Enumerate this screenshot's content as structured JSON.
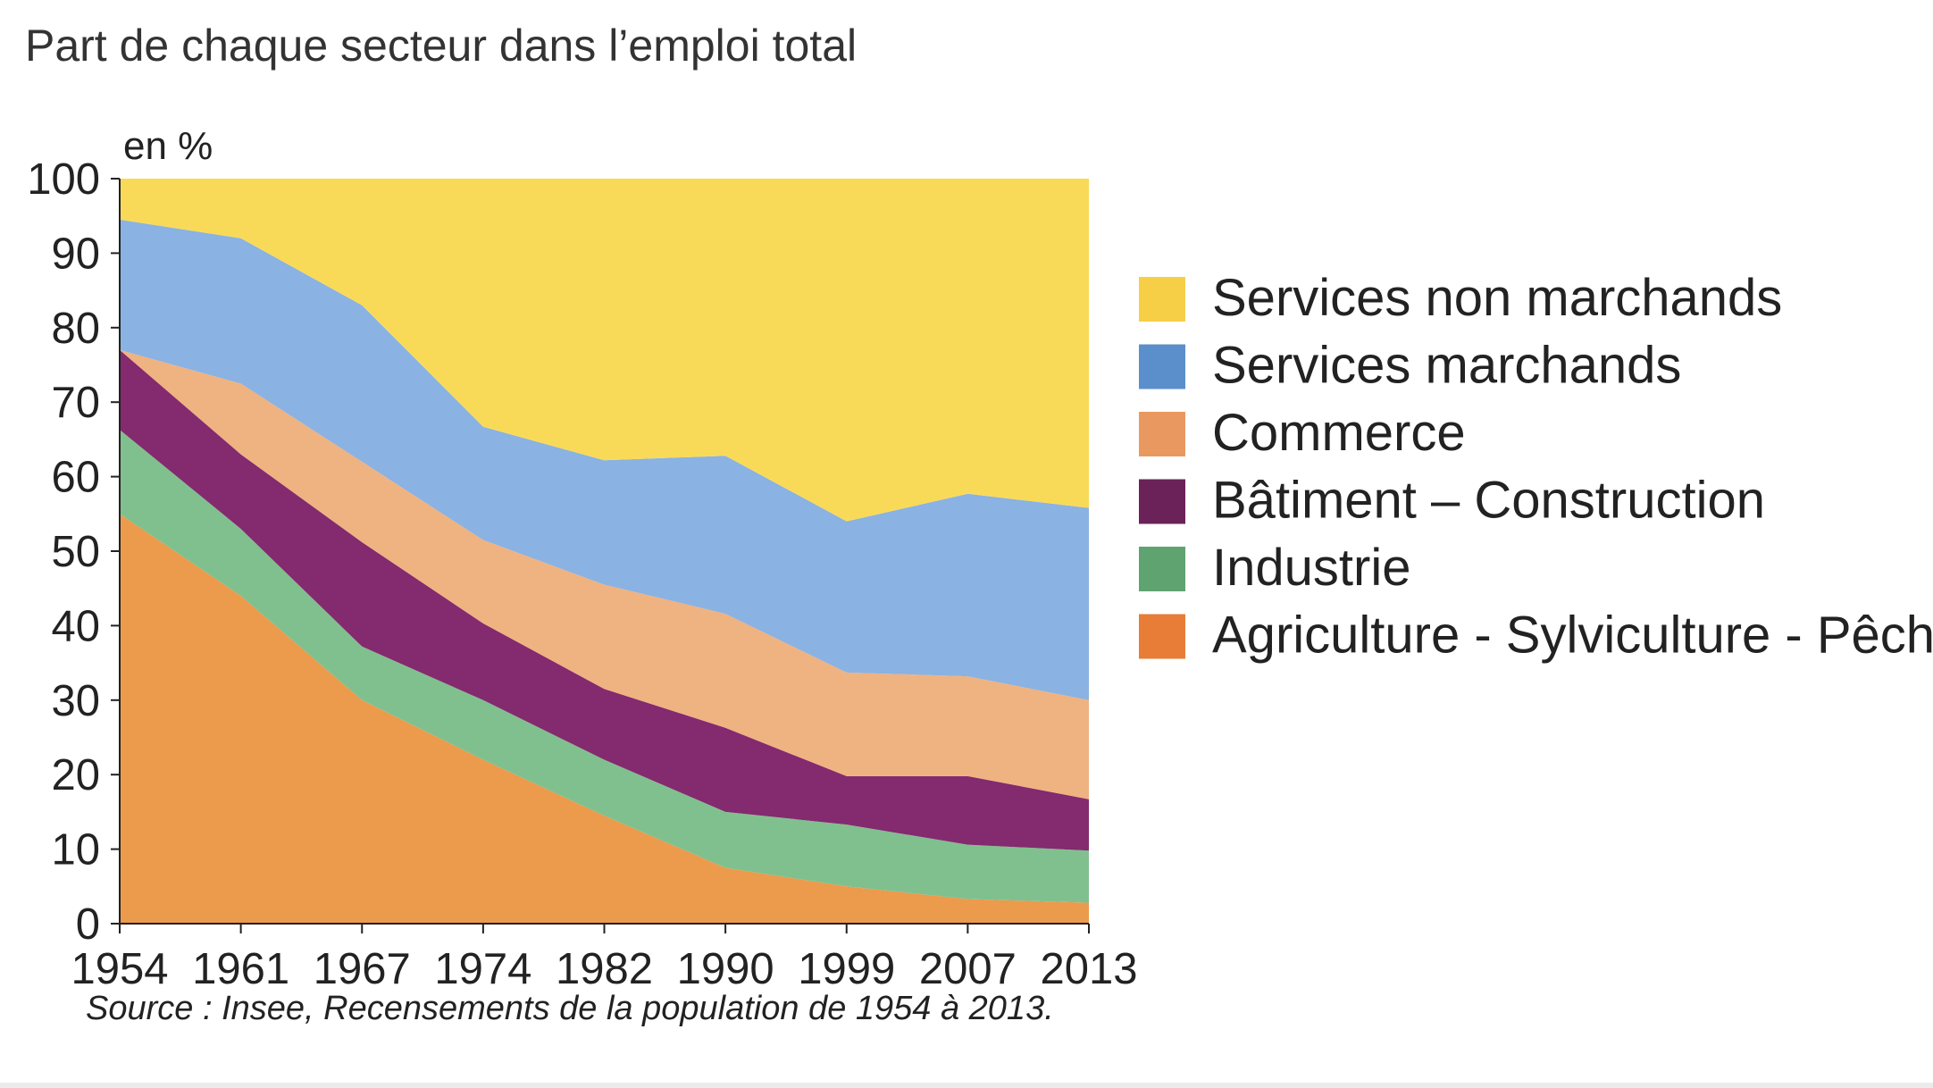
{
  "chart_data": {
    "type": "area",
    "stacked": true,
    "title": "Part de chaque secteur dans l’emploi total",
    "ylabel": "en %",
    "xlabel": "",
    "x": [
      "1954",
      "1961",
      "1967",
      "1974",
      "1982",
      "1990",
      "1999",
      "2007",
      "2013"
    ],
    "ylim": [
      0,
      100
    ],
    "yticks": [
      "0",
      "10",
      "20",
      "30",
      "40",
      "50",
      "60",
      "70",
      "80",
      "90",
      "100"
    ],
    "grid": false,
    "legend_position": "right",
    "series": [
      {
        "name": "Agriculture - Sylviculture - Pêche",
        "color": "#ec9a4c",
        "values": [
          55.0,
          44.0,
          30.0,
          22.0,
          14.5,
          7.5,
          5.0,
          3.3,
          2.8
        ]
      },
      {
        "name": "Industrie",
        "color": "#80c08e",
        "values": [
          11.3,
          9.0,
          7.2,
          8.0,
          7.5,
          7.5,
          8.3,
          7.3,
          7.0
        ]
      },
      {
        "name": "Bâtiment – Construction",
        "color": "#842a6f",
        "values": [
          10.7,
          10.0,
          14.0,
          10.3,
          9.5,
          11.3,
          6.5,
          9.2,
          6.9
        ]
      },
      {
        "name": "Commerce",
        "color": "#efb281",
        "values": [
          0.0,
          9.5,
          10.8,
          11.2,
          14.0,
          15.3,
          13.9,
          13.4,
          13.3
        ]
      },
      {
        "name": "Services marchands",
        "color": "#8ab2e2",
        "values": [
          17.5,
          19.5,
          21.0,
          15.2,
          16.7,
          21.2,
          20.3,
          24.5,
          25.8
        ]
      },
      {
        "name": "Services non marchands",
        "color": "#f9da58",
        "values": [
          5.5,
          8.0,
          17.0,
          33.3,
          37.8,
          37.2,
          46.0,
          42.3,
          44.2
        ]
      }
    ],
    "legend_colors": [
      "#f6cf47",
      "#5b8fcb",
      "#e9995f",
      "#6b2258",
      "#5fa370",
      "#e77d37"
    ],
    "legend_order": [
      "Services non marchands",
      "Services marchands",
      "Commerce",
      "Bâtiment – Construction",
      "Industrie",
      "Agriculture - Sylviculture - Pêche"
    ]
  },
  "source": "Source : Insee, Recensements de la population de 1954 à 2013."
}
